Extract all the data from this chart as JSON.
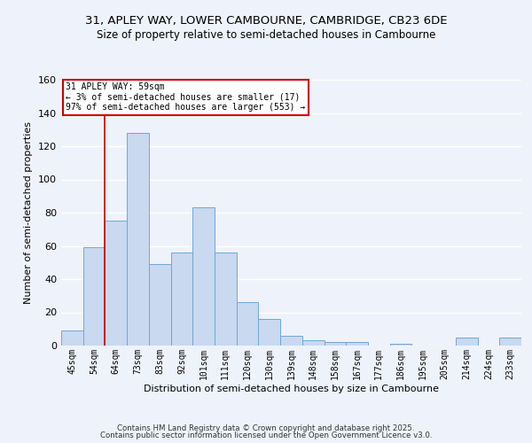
{
  "title1": "31, APLEY WAY, LOWER CAMBOURNE, CAMBRIDGE, CB23 6DE",
  "title2": "Size of property relative to semi-detached houses in Cambourne",
  "xlabel": "Distribution of semi-detached houses by size in Cambourne",
  "ylabel": "Number of semi-detached properties",
  "categories": [
    "45sqm",
    "54sqm",
    "64sqm",
    "73sqm",
    "83sqm",
    "92sqm",
    "101sqm",
    "111sqm",
    "120sqm",
    "130sqm",
    "139sqm",
    "148sqm",
    "158sqm",
    "167sqm",
    "177sqm",
    "186sqm",
    "195sqm",
    "205sqm",
    "214sqm",
    "224sqm",
    "233sqm"
  ],
  "values": [
    9,
    59,
    75,
    128,
    49,
    56,
    83,
    56,
    26,
    16,
    6,
    3,
    2,
    2,
    0,
    1,
    0,
    0,
    5,
    0,
    5
  ],
  "bar_color": "#c8d9f0",
  "bar_edge_color": "#6fa8d4",
  "ylim": [
    0,
    160
  ],
  "yticks": [
    0,
    20,
    40,
    60,
    80,
    100,
    120,
    140,
    160
  ],
  "property_line_x": 1.5,
  "annotation_title": "31 APLEY WAY: 59sqm",
  "annotation_line1": "← 3% of semi-detached houses are smaller (17)",
  "annotation_line2": "97% of semi-detached houses are larger (553) →",
  "vline_color": "#cc0000",
  "background_color": "#eef2fa",
  "grid_color": "#ffffff",
  "footer1": "Contains HM Land Registry data © Crown copyright and database right 2025.",
  "footer2": "Contains public sector information licensed under the Open Government Licence v3.0."
}
